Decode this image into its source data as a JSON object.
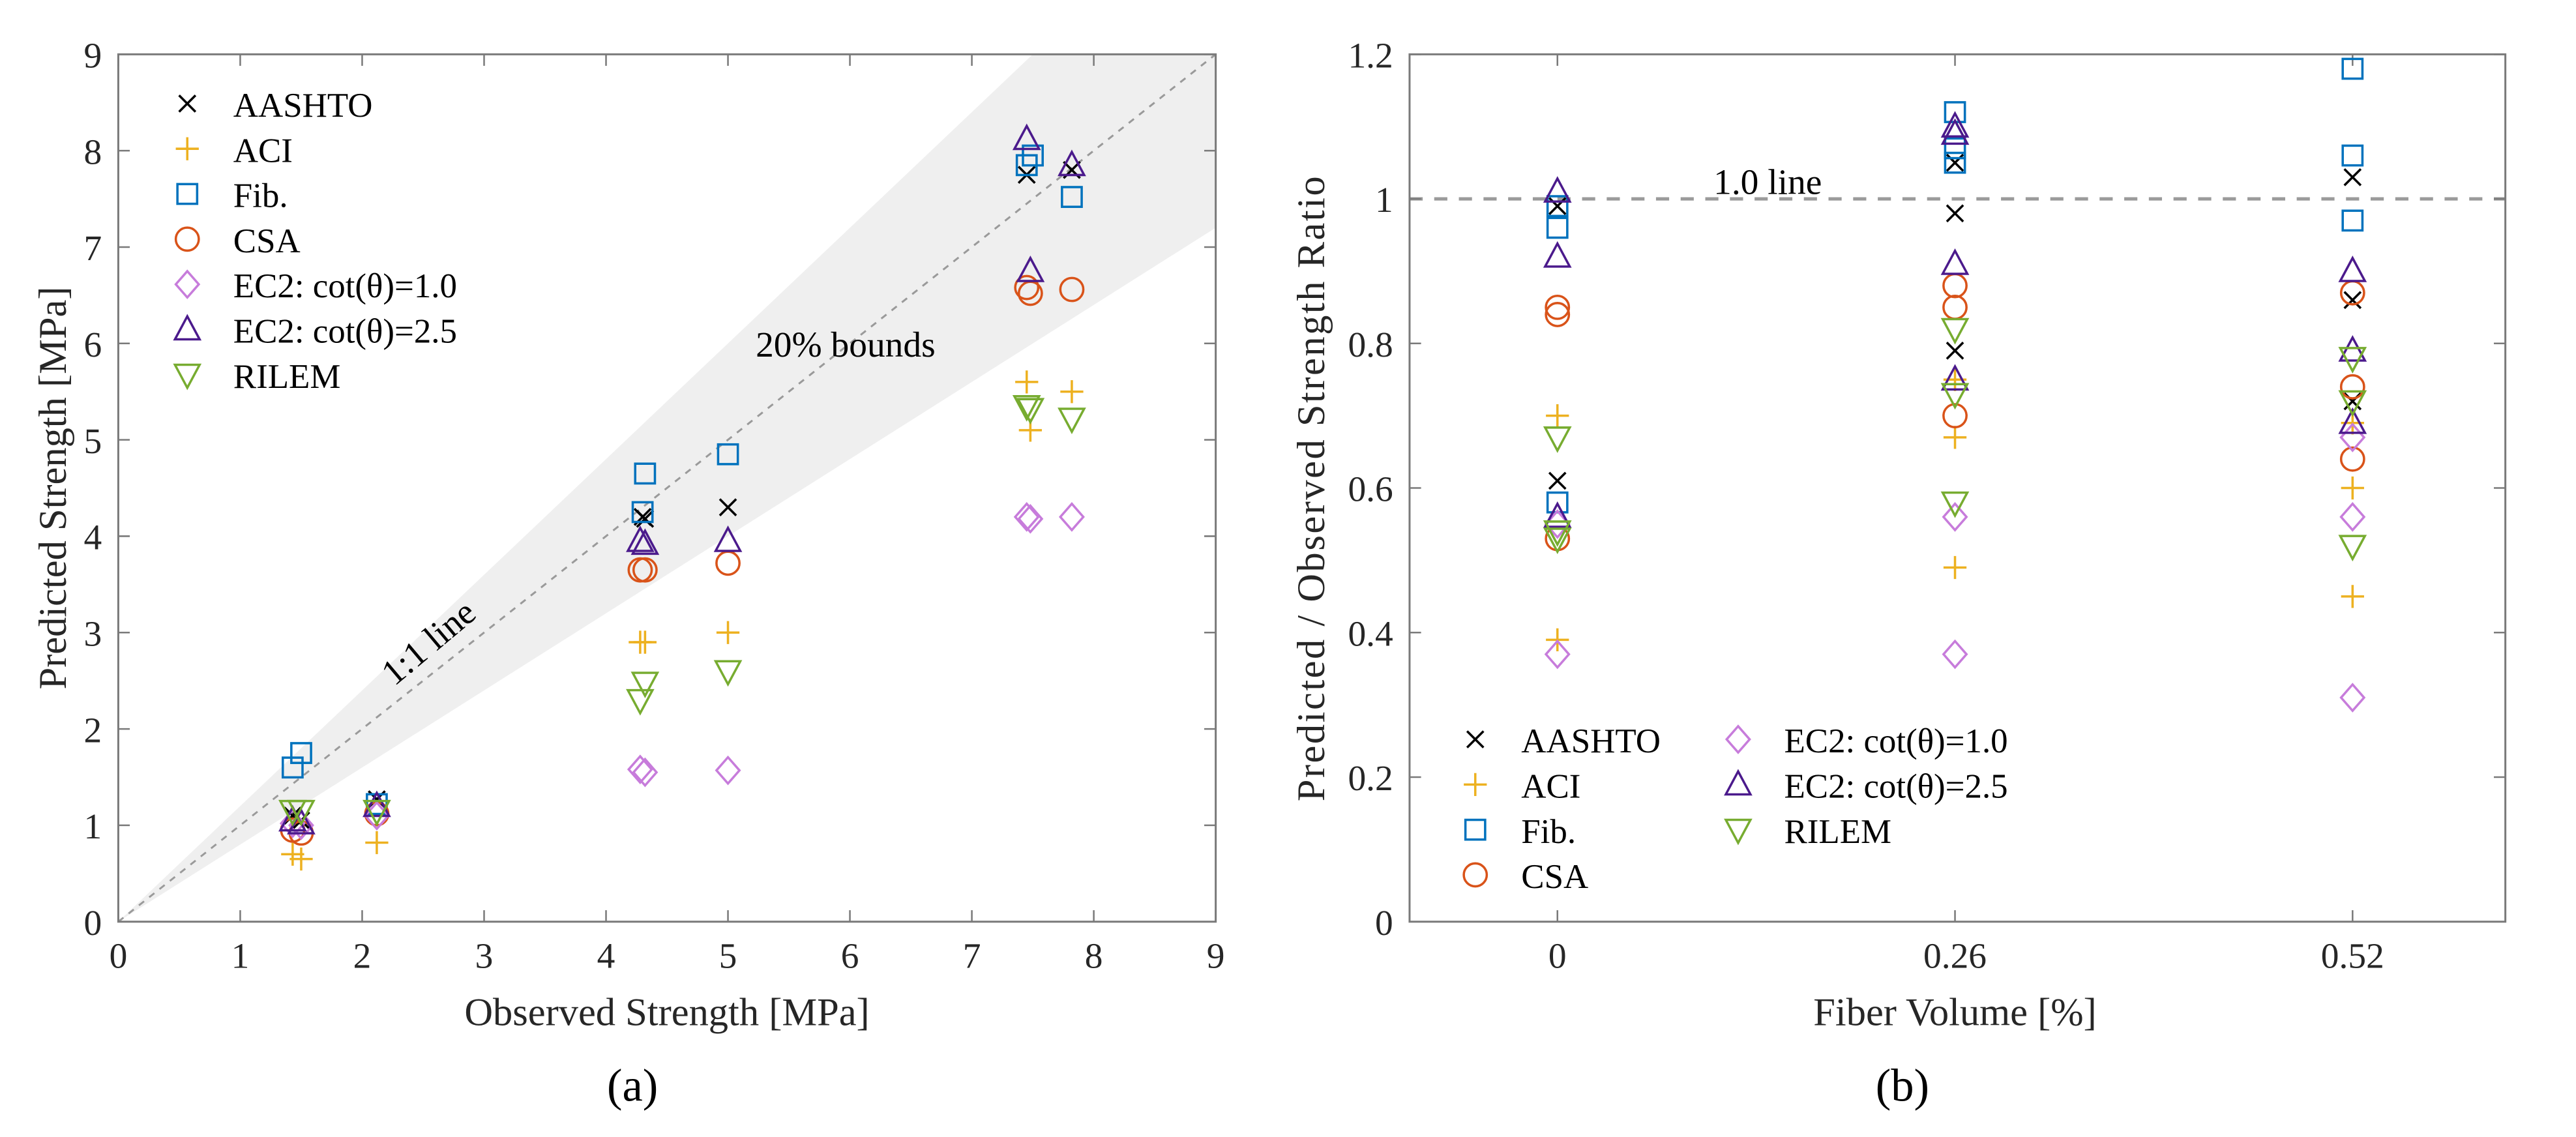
{
  "series_styles": [
    {
      "name": "AASHTO",
      "marker": "x",
      "color": "#000000"
    },
    {
      "name": "ACI",
      "marker": "plus",
      "color": "#EDB120"
    },
    {
      "name": "Fib.",
      "marker": "square",
      "color": "#0072BD"
    },
    {
      "name": "CSA",
      "marker": "circle",
      "color": "#D95319"
    },
    {
      "name": "EC2: cot(θ)=1.0",
      "marker": "diamond",
      "color": "#C77CDB"
    },
    {
      "name": "EC2: cot(θ)=2.5",
      "marker": "triangle-up",
      "color": "#4B1A8C"
    },
    {
      "name": "RILEM",
      "marker": "triangle-down",
      "color": "#77AC30"
    }
  ],
  "chart_data": [
    {
      "type": "scatter",
      "panel": "(a)",
      "xlabel": "Observed Strength [MPa]",
      "ylabel": "Predicted Strength [MPa]",
      "xlim": [
        0,
        9
      ],
      "ylim": [
        0,
        9
      ],
      "xticks": [
        "0",
        "1",
        "2",
        "3",
        "4",
        "5",
        "6",
        "7",
        "8",
        "9"
      ],
      "yticks": [
        "0",
        "1",
        "2",
        "3",
        "4",
        "5",
        "6",
        "7",
        "8",
        "9"
      ],
      "grid": false,
      "legend_position": "top-left",
      "annotations": {
        "line": "1:1 line",
        "band": "20% bounds"
      },
      "band": {
        "lower_slope": 0.8,
        "upper_slope": 1.2
      },
      "series": [
        {
          "name": "AASHTO",
          "points": [
            [
              1.43,
              1.1
            ],
            [
              1.5,
              1.05
            ],
            [
              2.12,
              1.27
            ],
            [
              4.3,
              4.2
            ],
            [
              4.32,
              4.18
            ],
            [
              5.0,
              4.3
            ],
            [
              7.45,
              7.75
            ],
            [
              7.82,
              7.8
            ]
          ]
        },
        {
          "name": "ACI",
          "points": [
            [
              1.43,
              0.7
            ],
            [
              1.5,
              0.65
            ],
            [
              2.12,
              0.82
            ],
            [
              4.28,
              2.9
            ],
            [
              4.32,
              2.9
            ],
            [
              5.0,
              3.0
            ],
            [
              7.45,
              5.6
            ],
            [
              7.48,
              5.1
            ],
            [
              7.82,
              5.5
            ]
          ]
        },
        {
          "name": "Fib.",
          "points": [
            [
              1.43,
              1.6
            ],
            [
              1.5,
              1.75
            ],
            [
              2.12,
              1.22
            ],
            [
              4.3,
              4.25
            ],
            [
              4.32,
              4.65
            ],
            [
              5.0,
              4.85
            ],
            [
              7.45,
              7.85
            ],
            [
              7.5,
              7.95
            ],
            [
              7.82,
              7.52
            ]
          ]
        },
        {
          "name": "CSA",
          "points": [
            [
              1.43,
              0.95
            ],
            [
              1.5,
              0.92
            ],
            [
              2.12,
              1.12
            ],
            [
              4.28,
              3.65
            ],
            [
              4.32,
              3.65
            ],
            [
              5.0,
              3.72
            ],
            [
              7.45,
              6.58
            ],
            [
              7.48,
              6.52
            ],
            [
              7.82,
              6.56
            ]
          ]
        },
        {
          "name": "EC2: cot(θ)=1.0",
          "points": [
            [
              1.43,
              1.02
            ],
            [
              1.5,
              1.0
            ],
            [
              2.12,
              1.1
            ],
            [
              4.28,
              1.58
            ],
            [
              4.32,
              1.55
            ],
            [
              5.0,
              1.57
            ],
            [
              7.45,
              4.2
            ],
            [
              7.48,
              4.18
            ],
            [
              7.82,
              4.2
            ]
          ]
        },
        {
          "name": "EC2: cot(θ)=2.5",
          "points": [
            [
              1.43,
              1.05
            ],
            [
              1.5,
              1.02
            ],
            [
              2.12,
              1.2
            ],
            [
              4.28,
              3.95
            ],
            [
              4.32,
              3.92
            ],
            [
              5.0,
              3.95
            ],
            [
              7.45,
              8.12
            ],
            [
              7.48,
              6.75
            ],
            [
              7.82,
              7.85
            ]
          ]
        },
        {
          "name": "RILEM",
          "points": [
            [
              1.43,
              1.15
            ],
            [
              1.5,
              1.15
            ],
            [
              2.12,
              1.15
            ],
            [
              4.28,
              2.3
            ],
            [
              4.32,
              2.48
            ],
            [
              5.0,
              2.6
            ],
            [
              7.45,
              5.35
            ],
            [
              7.48,
              5.32
            ],
            [
              7.82,
              5.22
            ]
          ]
        }
      ]
    },
    {
      "type": "scatter",
      "panel": "(b)",
      "xlabel": "Fiber Volume [%]",
      "ylabel": "Predicted / Observed Strength Ratio",
      "xcategories": [
        "0",
        "0.26",
        "0.52"
      ],
      "ylim": [
        0,
        1.2
      ],
      "yticks": [
        "0",
        "0.2",
        "0.4",
        "0.6",
        "0.8",
        "1",
        "1.2"
      ],
      "grid": false,
      "legend_position": "bottom-left",
      "annotations": {
        "line": "1.0 line"
      },
      "reference_line": 1.0,
      "series": [
        {
          "name": "AASHTO",
          "values": [
            [
              0.99,
              0.61
            ],
            [
              1.05,
              0.98,
              0.79
            ],
            [
              1.03,
              0.86,
              0.72
            ]
          ]
        },
        {
          "name": "ACI",
          "values": [
            [
              0.7,
              0.39
            ],
            [
              0.75,
              0.67,
              0.49
            ],
            [
              0.69,
              0.6,
              0.45
            ]
          ]
        },
        {
          "name": "Fib.",
          "values": [
            [
              0.99,
              0.96,
              0.58
            ],
            [
              1.12,
              1.07,
              1.05
            ],
            [
              1.18,
              1.06,
              0.97
            ]
          ]
        },
        {
          "name": "CSA",
          "values": [
            [
              0.85,
              0.84,
              0.53
            ],
            [
              0.88,
              0.85,
              0.7
            ],
            [
              0.87,
              0.74,
              0.64
            ]
          ]
        },
        {
          "name": "EC2: cot(θ)=1.0",
          "values": [
            [
              0.55,
              0.37
            ],
            [
              0.56,
              0.37
            ],
            [
              0.67,
              0.56,
              0.31
            ]
          ]
        },
        {
          "name": "EC2: cot(θ)=2.5",
          "values": [
            [
              1.01,
              0.92,
              0.56
            ],
            [
              1.1,
              1.09,
              0.91,
              0.75
            ],
            [
              0.9,
              0.79,
              0.69
            ]
          ]
        },
        {
          "name": "RILEM",
          "values": [
            [
              0.67,
              0.54,
              0.53
            ],
            [
              0.82,
              0.73,
              0.58
            ],
            [
              0.78,
              0.72,
              0.52
            ]
          ]
        }
      ]
    }
  ]
}
